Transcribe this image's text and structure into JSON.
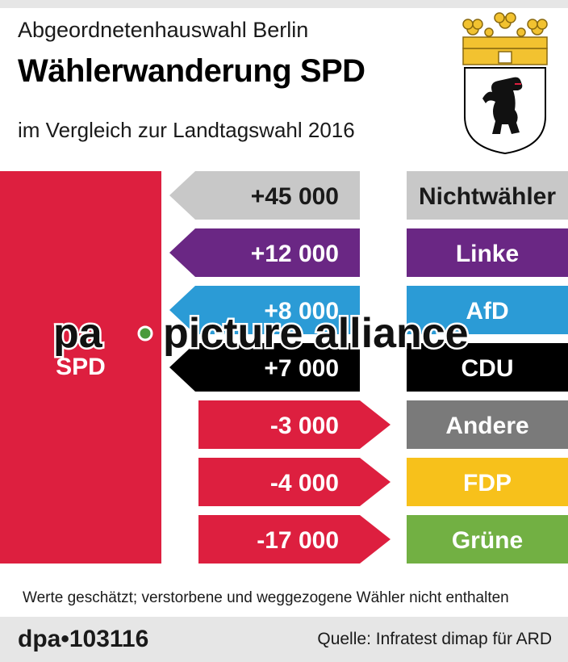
{
  "header": {
    "supertitle": "Abgeordnetenhauswahl Berlin",
    "title": "Wählerwanderung SPD",
    "subtitle": "im Vergleich zur Landtagswahl 2016"
  },
  "chart_data": {
    "type": "bar",
    "party": "SPD",
    "unit": "Wähler",
    "flows": [
      {
        "label": "Nichtwähler",
        "value": 45000,
        "value_label": "+45 000",
        "color": "#c8c8c8",
        "text_color": "#1a1a1a"
      },
      {
        "label": "Linke",
        "value": 12000,
        "value_label": "+12 000",
        "color": "#6a2784",
        "text_color": "#ffffff"
      },
      {
        "label": "AfD",
        "value": 8000,
        "value_label": "+8 000",
        "color": "#2b9bd6",
        "text_color": "#ffffff"
      },
      {
        "label": "CDU",
        "value": 7000,
        "value_label": "+7 000",
        "color": "#000000",
        "text_color": "#ffffff"
      },
      {
        "label": "Andere",
        "value": -3000,
        "value_label": "-3 000",
        "color": "#7a7a7a",
        "text_color": "#ffffff"
      },
      {
        "label": "FDP",
        "value": -4000,
        "value_label": "-4 000",
        "color": "#f7c11b",
        "text_color": "#ffffff"
      },
      {
        "label": "Grüne",
        "value": -17000,
        "value_label": "-17 000",
        "color": "#72b043",
        "text_color": "#ffffff"
      }
    ],
    "spd_color": "#dd1f3f",
    "arrow_gain_color": "as-source",
    "arrow_loss_color": "#dd1f3f"
  },
  "footnote": "Werte geschätzt; verstorbene und weggezogene Wähler nicht enthalten",
  "footer": {
    "agency": "dpa•103116",
    "source": "Quelle: Infratest dimap für ARD"
  },
  "watermark": {
    "pa": "pa",
    "text": "picture alliance"
  },
  "crest_icon": "berlin-bear-crest-icon"
}
